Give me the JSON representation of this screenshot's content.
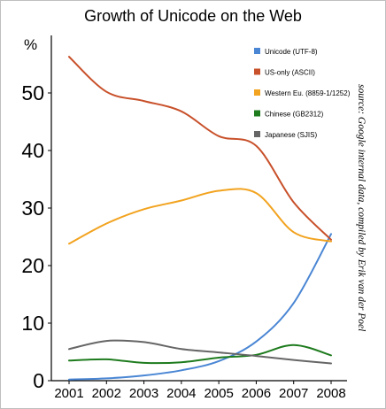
{
  "chart_data": {
    "type": "line",
    "title": "Growth of Unicode on the Web",
    "y_unit_label": "%",
    "x": [
      "2001",
      "2002",
      "2003",
      "2004",
      "2005",
      "2006",
      "2007",
      "2008"
    ],
    "ylim": [
      0,
      60
    ],
    "yticks": [
      0,
      10,
      20,
      30,
      40,
      50
    ],
    "grid": false,
    "legend_position": "top-right",
    "series": [
      {
        "name": "Unicode (UTF-8)",
        "color": "#4a86d4",
        "values": [
          0.2,
          0.4,
          0.9,
          1.8,
          3.4,
          6.8,
          13.5,
          25.5
        ]
      },
      {
        "name": "US-only (ASCII)",
        "color": "#c8502a",
        "values": [
          56.3,
          50.2,
          48.6,
          46.8,
          42.5,
          40.8,
          31.0,
          24.5
        ]
      },
      {
        "name": "Western Eu. (8859-1/1252)",
        "color": "#f2a31f",
        "values": [
          23.8,
          27.3,
          29.8,
          31.3,
          33.0,
          32.6,
          25.8,
          24.2
        ]
      },
      {
        "name": "Chinese (GB2312)",
        "color": "#1e7b1e",
        "values": [
          3.5,
          3.7,
          3.1,
          3.2,
          4.0,
          4.5,
          6.2,
          4.4
        ]
      },
      {
        "name": "Japanese (SJIS)",
        "color": "#666666",
        "values": [
          5.5,
          6.9,
          6.7,
          5.5,
          4.9,
          4.3,
          3.6,
          3.0
        ]
      }
    ],
    "source_note": "source: Google internal data, compiled by Erik van der Poel"
  }
}
